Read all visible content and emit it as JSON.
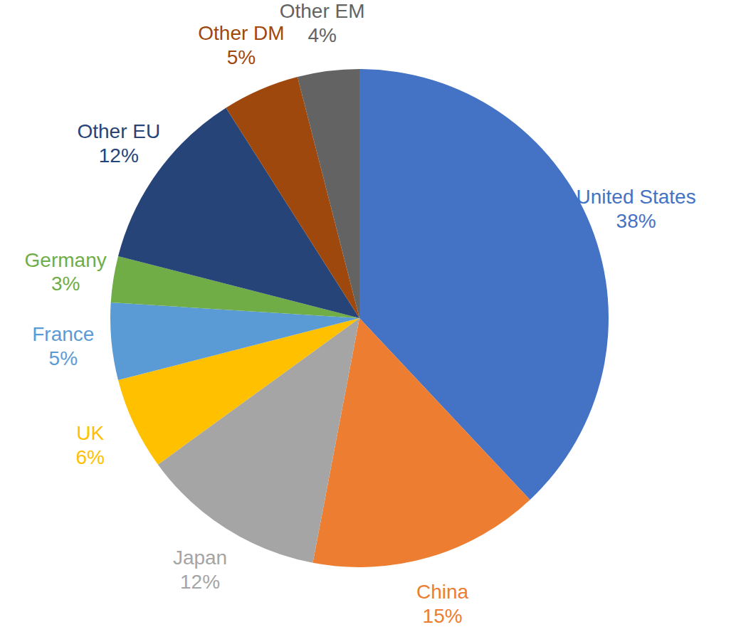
{
  "chart_data": {
    "type": "pie",
    "categories": [
      "United States",
      "China",
      "Japan",
      "UK",
      "France",
      "Germany",
      "Other EU",
      "Other DM",
      "Other EM"
    ],
    "values": [
      38,
      15,
      12,
      6,
      5,
      3,
      12,
      5,
      4
    ],
    "value_labels": [
      "38%",
      "15%",
      "12%",
      "6%",
      "5%",
      "3%",
      "12%",
      "5%",
      "4%"
    ],
    "colors": [
      "#4472c4",
      "#ed7d31",
      "#a5a5a5",
      "#ffc000",
      "#5b9bd5",
      "#70ad47",
      "#264478",
      "#9e480e",
      "#636363"
    ]
  }
}
